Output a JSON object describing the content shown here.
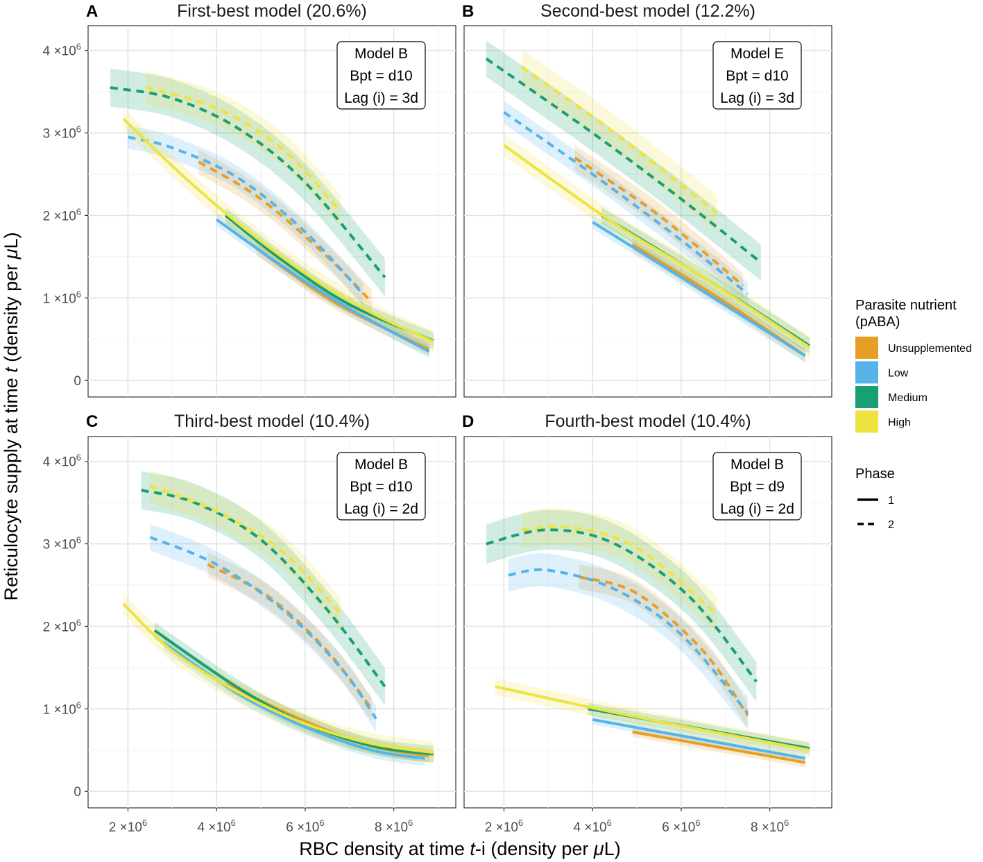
{
  "figure": {
    "xlabel_pre": "RBC density at time ",
    "xlabel_t": "t",
    "xlabel_post": "-i (density per ",
    "xlabel_mu": "μ",
    "xlabel_end": "L)",
    "ylabel_pre": "Reticulocyte supply at time ",
    "ylabel_t": "t",
    "ylabel_post": " (density per ",
    "ylabel_mu": "μ",
    "ylabel_end": "L)"
  },
  "legend": {
    "color_title_1": "Parasite nutrient",
    "color_title_2": "(pABA)",
    "groups": [
      {
        "name": "Unsupplemented",
        "color": "#E69F25"
      },
      {
        "name": "Low",
        "color": "#56B4E9"
      },
      {
        "name": "Medium",
        "color": "#1A9E73"
      },
      {
        "name": "High",
        "color": "#EDE341"
      }
    ],
    "phase_title": "Phase",
    "phases": [
      {
        "name": "1",
        "dash": "solid"
      },
      {
        "name": "2",
        "dash": "dashed"
      }
    ]
  },
  "axes": {
    "x_ticks": [
      {
        "value": 2000000,
        "mantissa": "2",
        "exp": "6"
      },
      {
        "value": 4000000,
        "mantissa": "4",
        "exp": "6"
      },
      {
        "value": 6000000,
        "mantissa": "6",
        "exp": "6"
      },
      {
        "value": 8000000,
        "mantissa": "8",
        "exp": "6"
      }
    ],
    "y_ticks": [
      {
        "value": 0,
        "label": "0"
      },
      {
        "value": 1000000,
        "mantissa": "1",
        "exp": "6"
      },
      {
        "value": 2000000,
        "mantissa": "2",
        "exp": "6"
      },
      {
        "value": 3000000,
        "mantissa": "3",
        "exp": "6"
      },
      {
        "value": 4000000,
        "mantissa": "4",
        "exp": "6"
      }
    ],
    "times": "×10"
  },
  "chart_data": [
    {
      "type": "line",
      "panel": "A",
      "title": "First-best model (20.6%)",
      "box": [
        "Model B",
        "Bpt = d10",
        "Lag (i) = 3d"
      ],
      "xlim": [
        1100000,
        9400000
      ],
      "ylim": [
        -200000,
        4300000
      ],
      "series": [
        {
          "group": "Unsupplemented",
          "phase": "2",
          "x": [
            3600000,
            5000000,
            6500000,
            7500000
          ],
          "y": [
            2650000,
            2200000,
            1500000,
            950000
          ],
          "band": 150000
        },
        {
          "group": "Low",
          "phase": "2",
          "x": [
            2000000,
            3000000,
            4500000,
            6000000,
            7300000
          ],
          "y": [
            2950000,
            2820000,
            2450000,
            1800000,
            1050000
          ],
          "band": 140000
        },
        {
          "group": "Medium",
          "phase": "2",
          "x": [
            1600000,
            3000000,
            4500000,
            6000000,
            7800000
          ],
          "y": [
            3550000,
            3420000,
            3050000,
            2400000,
            1250000
          ],
          "band": 230000
        },
        {
          "group": "High",
          "phase": "2",
          "x": [
            2400000,
            4000000,
            5500000,
            6800000
          ],
          "y": [
            3550000,
            3300000,
            2800000,
            2050000
          ],
          "band": 200000
        },
        {
          "group": "Unsupplemented",
          "phase": "1",
          "x": [
            4900000,
            6500000,
            8000000,
            8800000
          ],
          "y": [
            1600000,
            1000000,
            580000,
            380000
          ],
          "band": 80000
        },
        {
          "group": "Low",
          "phase": "1",
          "x": [
            4000000,
            5500000,
            7000000,
            8800000
          ],
          "y": [
            1950000,
            1380000,
            870000,
            350000
          ],
          "band": 80000
        },
        {
          "group": "Medium",
          "phase": "1",
          "x": [
            4200000,
            5500000,
            7000000,
            8900000
          ],
          "y": [
            2000000,
            1450000,
            920000,
            480000
          ],
          "band": 100000
        },
        {
          "group": "High",
          "phase": "1",
          "x": [
            1900000,
            3200000,
            4500000,
            6000000,
            7500000,
            8900000
          ],
          "y": [
            3170000,
            2500000,
            1900000,
            1300000,
            820000,
            470000
          ],
          "band": 130000
        }
      ]
    },
    {
      "type": "line",
      "panel": "B",
      "title": "Second-best model (12.2%)",
      "box": [
        "Model E",
        "Bpt = d10",
        "Lag (i) = 3d"
      ],
      "xlim": [
        1100000,
        9400000
      ],
      "ylim": [
        -200000,
        4300000
      ],
      "series": [
        {
          "group": "Unsupplemented",
          "phase": "2",
          "x": [
            3600000,
            5500000,
            7400000
          ],
          "y": [
            2700000,
            2000000,
            1150000
          ],
          "band": 150000
        },
        {
          "group": "Low",
          "phase": "2",
          "x": [
            2000000,
            4000000,
            6000000,
            7500000
          ],
          "y": [
            3250000,
            2500000,
            1700000,
            1050000
          ],
          "band": 140000
        },
        {
          "group": "Medium",
          "phase": "2",
          "x": [
            1600000,
            4000000,
            6000000,
            7800000
          ],
          "y": [
            3900000,
            3000000,
            2200000,
            1430000
          ],
          "band": 220000
        },
        {
          "group": "High",
          "phase": "2",
          "x": [
            2400000,
            4500000,
            6800000
          ],
          "y": [
            3800000,
            3000000,
            2030000
          ],
          "band": 220000
        },
        {
          "group": "Unsupplemented",
          "phase": "1",
          "x": [
            4900000,
            7000000,
            8800000
          ],
          "y": [
            1650000,
            950000,
            300000
          ],
          "band": 80000
        },
        {
          "group": "Low",
          "phase": "1",
          "x": [
            4000000,
            6000000,
            8800000
          ],
          "y": [
            1920000,
            1250000,
            300000
          ],
          "band": 80000
        },
        {
          "group": "Medium",
          "phase": "1",
          "x": [
            4200000,
            6500000,
            8900000
          ],
          "y": [
            2000000,
            1250000,
            420000
          ],
          "band": 100000
        },
        {
          "group": "High",
          "phase": "1",
          "x": [
            2000000,
            4500000,
            6500000,
            8900000
          ],
          "y": [
            2850000,
            1900000,
            1250000,
            400000
          ],
          "band": 130000
        }
      ]
    },
    {
      "type": "line",
      "panel": "C",
      "title": "Third-best model (10.4%)",
      "box": [
        "Model B",
        "Bpt = d10",
        "Lag (i) = 2d"
      ],
      "xlim": [
        1100000,
        9400000
      ],
      "ylim": [
        -200000,
        4300000
      ],
      "series": [
        {
          "group": "Unsupplemented",
          "phase": "2",
          "x": [
            3800000,
            5200000,
            6500000,
            7500000
          ],
          "y": [
            2750000,
            2350000,
            1700000,
            1000000
          ],
          "band": 150000
        },
        {
          "group": "Low",
          "phase": "2",
          "x": [
            2500000,
            4000000,
            5500000,
            6800000,
            7600000
          ],
          "y": [
            3080000,
            2750000,
            2200000,
            1500000,
            880000
          ],
          "band": 160000
        },
        {
          "group": "Medium",
          "phase": "2",
          "x": [
            2300000,
            3500000,
            5000000,
            6500000,
            7800000
          ],
          "y": [
            3650000,
            3500000,
            3050000,
            2200000,
            1270000
          ],
          "band": 230000
        },
        {
          "group": "High",
          "phase": "2",
          "x": [
            2500000,
            4000000,
            5500000,
            6800000
          ],
          "y": [
            3700000,
            3400000,
            2900000,
            2150000
          ],
          "band": 200000
        },
        {
          "group": "Unsupplemented",
          "phase": "1",
          "x": [
            4200000,
            6000000,
            7500000,
            8800000
          ],
          "y": [
            1300000,
            850000,
            550000,
            430000
          ],
          "band": 80000
        },
        {
          "group": "Low",
          "phase": "1",
          "x": [
            2800000,
            4500000,
            6000000,
            7500000,
            8700000
          ],
          "y": [
            1800000,
            1180000,
            780000,
            500000,
            400000
          ],
          "band": 90000
        },
        {
          "group": "Medium",
          "phase": "1",
          "x": [
            2600000,
            4500000,
            6000000,
            7500000,
            8900000
          ],
          "y": [
            1950000,
            1250000,
            820000,
            550000,
            450000
          ],
          "band": 100000
        },
        {
          "group": "High",
          "phase": "1",
          "x": [
            1900000,
            3000000,
            4500000,
            6000000,
            7500000,
            8900000
          ],
          "y": [
            2270000,
            1700000,
            1200000,
            820000,
            580000,
            470000
          ],
          "band": 130000
        }
      ]
    },
    {
      "type": "line",
      "panel": "D",
      "title": "Fourth-best model (10.4%)",
      "box": [
        "Model B",
        "Bpt = d9",
        "Lag (i) = 2d"
      ],
      "xlim": [
        1100000,
        9400000
      ],
      "ylim": [
        -200000,
        4300000
      ],
      "series": [
        {
          "group": "Unsupplemented",
          "phase": "2",
          "x": [
            3700000,
            5000000,
            6500000,
            7500000
          ],
          "y": [
            2600000,
            2400000,
            1700000,
            920000
          ],
          "band": 150000
        },
        {
          "group": "Low",
          "phase": "2",
          "x": [
            2100000,
            3000000,
            4500000,
            6000000,
            7500000
          ],
          "y": [
            2620000,
            2680000,
            2450000,
            1900000,
            950000
          ],
          "band": 200000
        },
        {
          "group": "Medium",
          "phase": "2",
          "x": [
            1600000,
            3000000,
            4500000,
            6200000,
            7700000
          ],
          "y": [
            3000000,
            3170000,
            3000000,
            2350000,
            1330000
          ],
          "band": 240000
        },
        {
          "group": "High",
          "phase": "2",
          "x": [
            2400000,
            3500000,
            5000000,
            6800000
          ],
          "y": [
            3170000,
            3200000,
            2950000,
            2150000
          ],
          "band": 220000
        },
        {
          "group": "Unsupplemented",
          "phase": "1",
          "x": [
            4900000,
            8800000
          ],
          "y": [
            720000,
            350000
          ],
          "band": 60000
        },
        {
          "group": "Low",
          "phase": "1",
          "x": [
            4000000,
            8800000
          ],
          "y": [
            870000,
            400000
          ],
          "band": 60000
        },
        {
          "group": "Medium",
          "phase": "1",
          "x": [
            3900000,
            8900000
          ],
          "y": [
            1000000,
            520000
          ],
          "band": 70000
        },
        {
          "group": "High",
          "phase": "1",
          "x": [
            1800000,
            5000000,
            8900000
          ],
          "y": [
            1270000,
            900000,
            500000
          ],
          "band": 100000
        }
      ]
    }
  ]
}
